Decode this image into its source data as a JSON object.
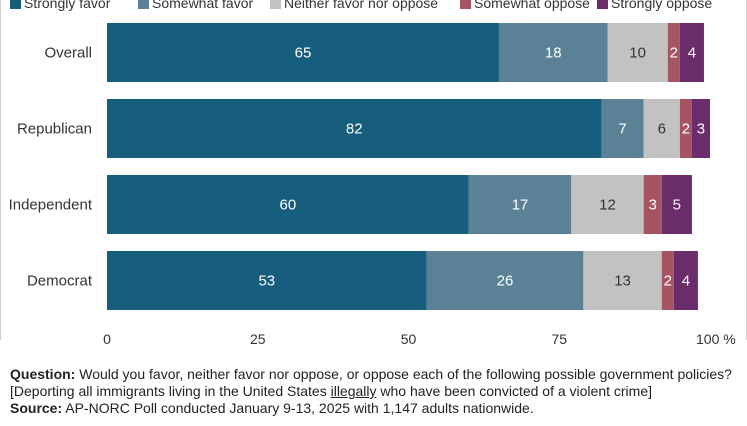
{
  "chart_data": {
    "type": "bar",
    "orientation": "horizontal",
    "stacked": true,
    "categories": [
      "Overall",
      "Republican",
      "Independent",
      "Democrat"
    ],
    "series": [
      {
        "name": "Strongly favor",
        "color": "#175e7e",
        "values": [
          65,
          82,
          60,
          53
        ]
      },
      {
        "name": "Somewhat favor",
        "color": "#5b8197",
        "values": [
          18,
          7,
          17,
          26
        ]
      },
      {
        "name": "Neither favor nor oppose",
        "color": "#c2c2c2",
        "values": [
          10,
          6,
          12,
          13
        ]
      },
      {
        "name": "Somewhat oppose",
        "color": "#a55462",
        "values": [
          2,
          2,
          3,
          2
        ]
      },
      {
        "name": "Strongly oppose",
        "color": "#6b2c6c",
        "values": [
          4,
          3,
          5,
          4
        ]
      }
    ],
    "xlim": [
      0,
      100
    ],
    "xticks": [
      "0",
      "25",
      "50",
      "75",
      "100 %"
    ],
    "legend": "top",
    "grid": false
  },
  "footer": {
    "question_label": "Question:",
    "question_text_1": " Would you favor, neither favor nor oppose, or oppose each of the following possible government policies? [Deporting all immigrants living in the United States ",
    "question_underlined": "illegally",
    "question_text_2": " who have been convicted of a violent crime]",
    "source_label": "Source:",
    "source_text": " AP-NORC Poll conducted January 9-13, 2025 with 1,147 adults nationwide."
  }
}
